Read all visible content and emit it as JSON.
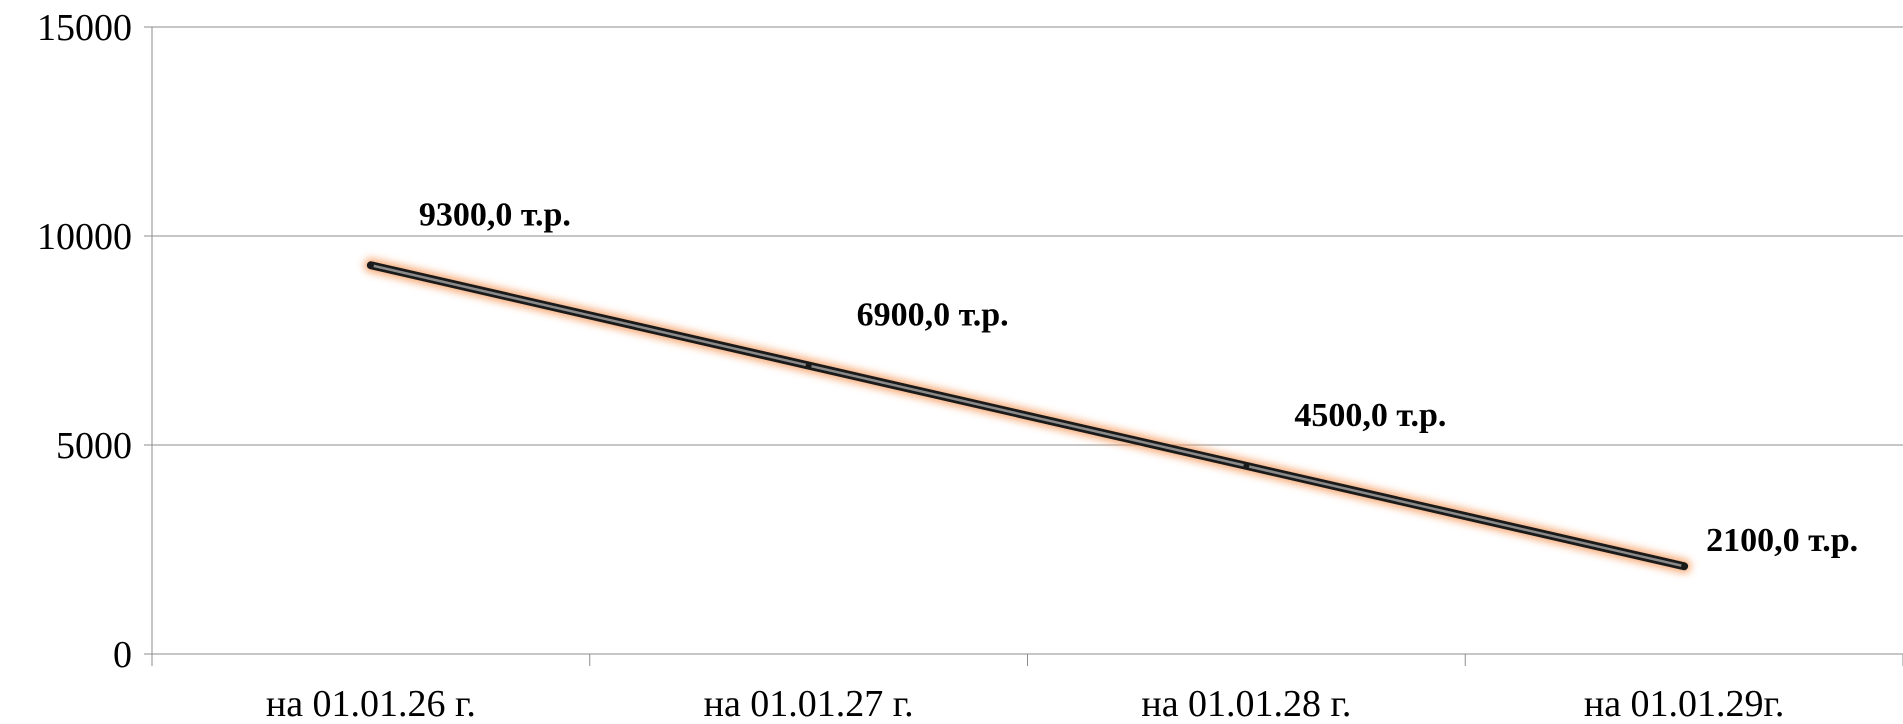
{
  "chart_data": {
    "type": "line",
    "categories": [
      "на 01.01.26 г.",
      "на 01.01.27 г.",
      "на 01.01.28 г.",
      "на 01.01.29г."
    ],
    "series": [
      {
        "values": [
          9300,
          6900,
          4500,
          2100
        ]
      }
    ],
    "data_labels": [
      "9300,0 т.р.",
      "6900,0 т.р.",
      "4500,0 т.р.",
      "2100,0 т.р."
    ],
    "y_ticks": [
      0,
      5000,
      10000,
      15000
    ],
    "ylim": [
      0,
      15000
    ],
    "grid": true,
    "legend": "none",
    "title": "",
    "xlabel": "",
    "ylabel": "",
    "colors": {
      "line": "#1a1a1a",
      "line_core": "#8a8a8a",
      "glow": "#f6a36a",
      "grid": "#8c8c8c",
      "axis": "#8c8c8c"
    }
  }
}
